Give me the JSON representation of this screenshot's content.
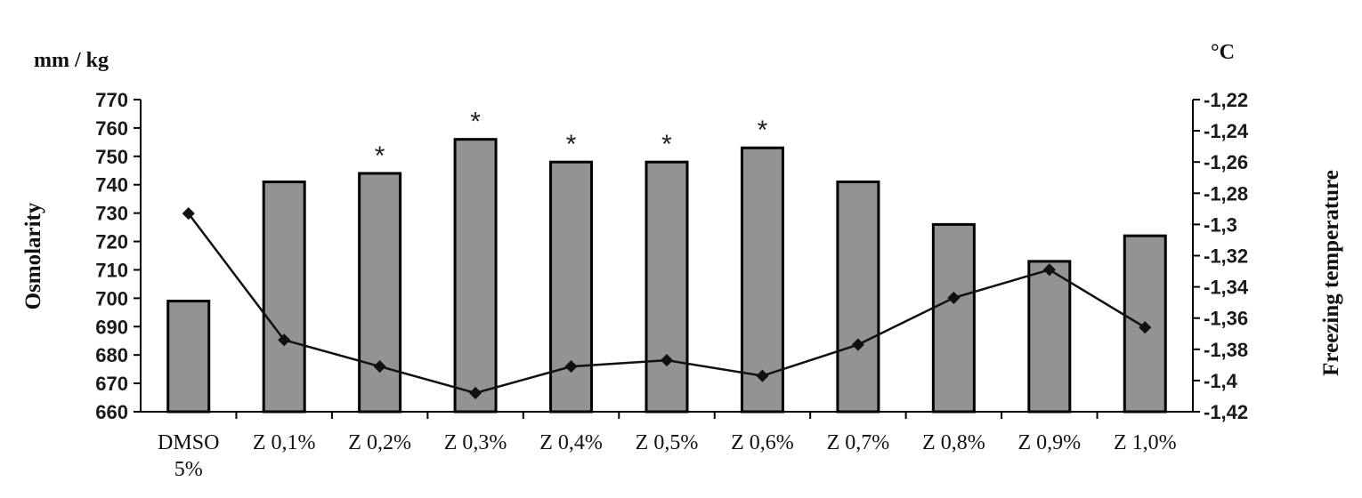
{
  "chart_data": {
    "type": "bar+line",
    "categories": [
      [
        "DMSO",
        "5%"
      ],
      [
        "Z 0,1%"
      ],
      [
        "Z 0,2%"
      ],
      [
        "Z 0,3%"
      ],
      [
        "Z 0,4%"
      ],
      [
        "Z 0,5%"
      ],
      [
        "Z  0,6%"
      ],
      [
        "Z 0,7%"
      ],
      [
        "Z 0,8%"
      ],
      [
        "Z 0,9%"
      ],
      [
        "Z 1,0%"
      ]
    ],
    "bars": {
      "axis": "left",
      "values": [
        699,
        741,
        744,
        756,
        748,
        748,
        753,
        741,
        726,
        713,
        722
      ],
      "color": "#939393",
      "significance": [
        "",
        "",
        "*",
        "*",
        "*",
        "*",
        "*",
        "",
        "",
        "",
        ""
      ]
    },
    "line": {
      "axis": "right",
      "values": [
        -1.293,
        -1.374,
        -1.391,
        -1.408,
        -1.391,
        -1.387,
        -1.397,
        -1.377,
        -1.347,
        -1.329,
        -1.366
      ],
      "color": "#111111"
    },
    "left_axis": {
      "unit": "mm / kg",
      "title": "Osmolarity",
      "ylim": [
        660,
        770
      ],
      "ticks": [
        "770",
        "760",
        "750",
        "740",
        "730",
        "720",
        "710",
        "700",
        "690",
        "680",
        "670",
        "660"
      ]
    },
    "right_axis": {
      "unit": "°C",
      "title": "Freezing temperature",
      "ylim": [
        -1.42,
        -1.22
      ],
      "ticks": [
        "-1,22",
        "-1,24",
        "-1,26",
        "-1,28",
        "-1,3",
        "-1,32",
        "-1,34",
        "-1,36",
        "-1,38",
        "-1,4",
        "-1,42"
      ]
    },
    "grid": false,
    "legend": "none"
  }
}
